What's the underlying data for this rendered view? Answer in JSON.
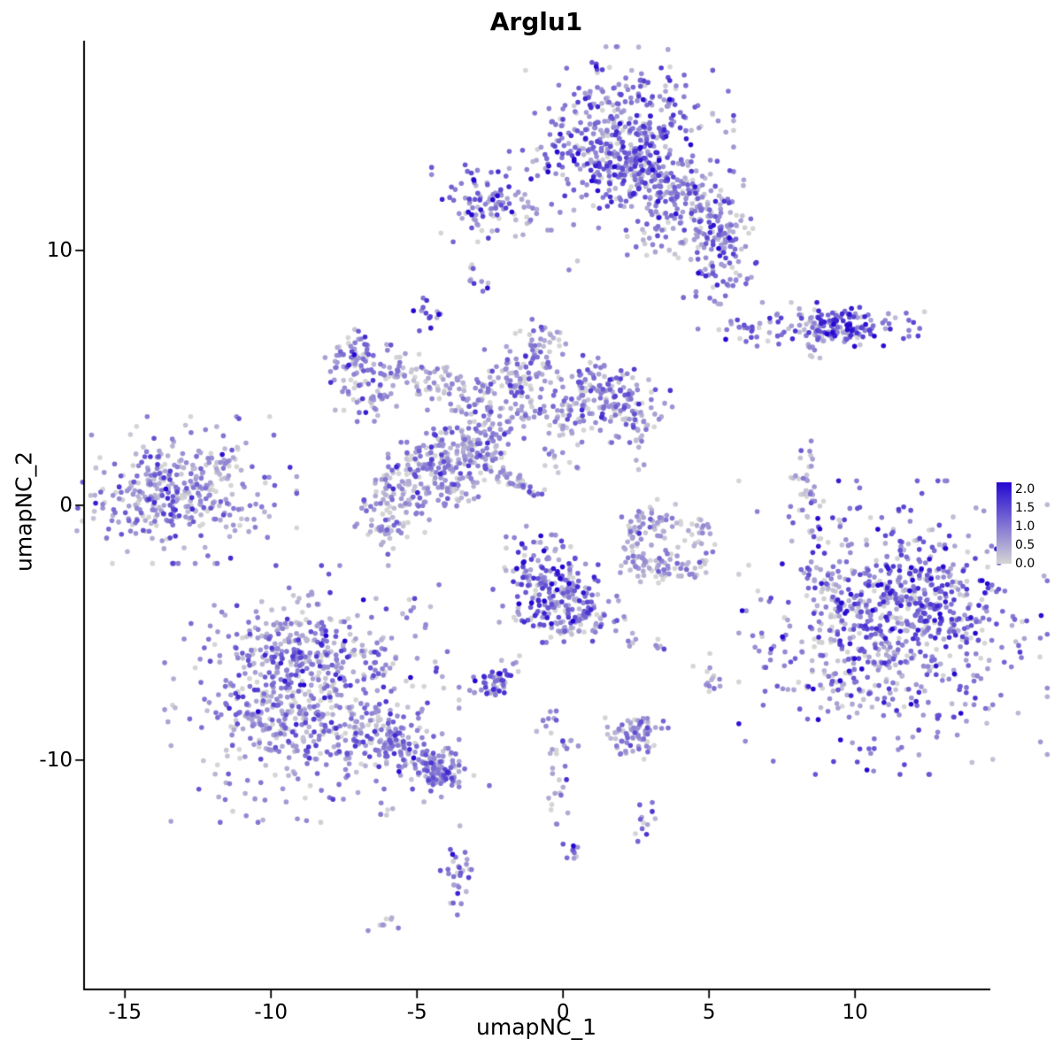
{
  "chart_data": {
    "type": "scatter",
    "title": "Arglu1",
    "xlabel": "umapNC_1",
    "ylabel": "umapNC_2",
    "xlim": [
      -16.4,
      14.6
    ],
    "ylim": [
      -19.0,
      18.2
    ],
    "xticks": [
      -15,
      -10,
      -5,
      0,
      5,
      10
    ],
    "yticks": [
      -10,
      0,
      10
    ],
    "grid": false,
    "point_radius": 2.8,
    "color_low": "#d5d5d5",
    "color_high": "#2408d1",
    "scale_max": 2.0,
    "legend": {
      "labels": [
        "2.0",
        "1.5",
        "1.0",
        "0.5",
        "0.0"
      ],
      "values": [
        2.0,
        1.5,
        1.0,
        0.5,
        0.0
      ],
      "bar_max": 2.2,
      "position": "right"
    },
    "clusters": [
      {
        "x": 2.0,
        "y": 14.4,
        "rx": 1.6,
        "ry": 1.5,
        "n": 420,
        "mean": 0.75,
        "sd": 0.55
      },
      {
        "x": 2.3,
        "y": 13.3,
        "rx": 0.8,
        "ry": 0.7,
        "n": 130,
        "mean": 1.05,
        "sd": 0.6
      },
      {
        "x": 4.4,
        "y": 12.0,
        "rx": 0.9,
        "ry": 0.7,
        "n": 100,
        "mean": 0.7,
        "sd": 0.5
      },
      {
        "x": 5.5,
        "y": 10.9,
        "rx": 0.55,
        "ry": 0.6,
        "n": 60,
        "mean": 0.75,
        "sd": 0.5
      },
      {
        "x": 5.3,
        "y": 9.7,
        "rx": 0.55,
        "ry": 0.75,
        "n": 75,
        "mean": 0.85,
        "sd": 0.55
      },
      {
        "x": 3.4,
        "y": 10.4,
        "rx": 0.5,
        "ry": 0.4,
        "n": 25,
        "mean": 0.5,
        "sd": 0.4
      },
      {
        "x": 3.1,
        "y": 12.6,
        "rx": 0.5,
        "ry": 0.5,
        "n": 40,
        "mean": 0.6,
        "sd": 0.5
      },
      {
        "x": -2.7,
        "y": 11.9,
        "rx": 0.75,
        "ry": 0.65,
        "n": 95,
        "mean": 0.9,
        "sd": 0.6
      },
      {
        "x": -1.2,
        "y": 11.3,
        "rx": 0.3,
        "ry": 0.2,
        "n": 8,
        "mean": 0.4,
        "sd": 0.3
      },
      {
        "x": -2.9,
        "y": 8.8,
        "rx": 0.2,
        "ry": 0.3,
        "n": 10,
        "mean": 0.9,
        "sd": 0.5
      },
      {
        "x": -4.6,
        "y": 7.5,
        "rx": 0.25,
        "ry": 0.3,
        "n": 14,
        "mean": 1.2,
        "sd": 0.5
      },
      {
        "x": 8.7,
        "y": 7.0,
        "rx": 1.7,
        "ry": 0.4,
        "n": 130,
        "mean": 0.95,
        "sd": 0.6
      },
      {
        "x": 9.6,
        "y": 7.1,
        "rx": 0.6,
        "ry": 0.45,
        "n": 60,
        "mean": 1.1,
        "sd": 0.6
      },
      {
        "x": 8.5,
        "y": 6.0,
        "rx": 0.15,
        "ry": 0.3,
        "n": 8,
        "mean": 0.6,
        "sd": 0.4
      },
      {
        "x": -7.1,
        "y": 5.7,
        "rx": 0.55,
        "ry": 0.6,
        "n": 65,
        "mean": 0.6,
        "sd": 0.5
      },
      {
        "x": -6.6,
        "y": 4.6,
        "rx": 0.5,
        "ry": 0.55,
        "n": 55,
        "mean": 0.6,
        "sd": 0.5
      },
      {
        "x": -5.4,
        "y": 5.3,
        "rx": 0.45,
        "ry": 0.4,
        "n": 28,
        "mean": 0.5,
        "sd": 0.45
      },
      {
        "x": -4.2,
        "y": 4.8,
        "rx": 0.5,
        "ry": 0.45,
        "n": 40,
        "mean": 0.5,
        "sd": 0.45
      },
      {
        "x": -2.9,
        "y": 4.2,
        "rx": 0.6,
        "ry": 0.5,
        "n": 50,
        "mean": 0.5,
        "sd": 0.45
      },
      {
        "x": -1.5,
        "y": 5.2,
        "rx": 0.6,
        "ry": 0.5,
        "n": 70,
        "mean": 0.6,
        "sd": 0.5
      },
      {
        "x": -0.6,
        "y": 6.1,
        "rx": 0.45,
        "ry": 0.5,
        "n": 40,
        "mean": 0.55,
        "sd": 0.45
      },
      {
        "x": 0.9,
        "y": 4.6,
        "rx": 0.7,
        "ry": 0.55,
        "n": 85,
        "mean": 0.65,
        "sd": 0.5
      },
      {
        "x": 2.1,
        "y": 3.9,
        "rx": 0.7,
        "ry": 0.65,
        "n": 95,
        "mean": 0.7,
        "sd": 0.5
      },
      {
        "x": 2.5,
        "y": 3.0,
        "rx": 0.3,
        "ry": 0.3,
        "n": 15,
        "mean": 0.5,
        "sd": 0.4
      },
      {
        "x": 0.1,
        "y": 3.2,
        "rx": 0.4,
        "ry": 0.4,
        "n": 30,
        "mean": 0.45,
        "sd": 0.4
      },
      {
        "x": -1.2,
        "y": 3.6,
        "rx": 0.5,
        "ry": 0.4,
        "n": 25,
        "mean": 0.45,
        "sd": 0.4
      },
      {
        "x": -2.4,
        "y": 2.8,
        "rx": 0.5,
        "ry": 0.45,
        "n": 40,
        "mean": 0.5,
        "sd": 0.45
      },
      {
        "x": -3.6,
        "y": 2.5,
        "rx": 0.5,
        "ry": 0.45,
        "n": 50,
        "mean": 0.55,
        "sd": 0.45
      },
      {
        "x": -4.5,
        "y": 1.8,
        "rx": 0.55,
        "ry": 0.5,
        "n": 60,
        "mean": 0.6,
        "sd": 0.5
      },
      {
        "x": -5.6,
        "y": 0.8,
        "rx": 0.65,
        "ry": 0.75,
        "n": 85,
        "mean": 0.6,
        "sd": 0.5
      },
      {
        "x": -5.9,
        "y": -0.6,
        "rx": 0.55,
        "ry": 0.55,
        "n": 55,
        "mean": 0.5,
        "sd": 0.45
      },
      {
        "x": -4.1,
        "y": 0.8,
        "rx": 0.5,
        "ry": 0.5,
        "n": 50,
        "mean": 0.6,
        "sd": 0.5
      },
      {
        "x": -3.1,
        "y": 1.5,
        "rx": 0.45,
        "ry": 0.4,
        "n": 35,
        "mean": 0.5,
        "sd": 0.45
      },
      {
        "x": -1.9,
        "y": 1.1,
        "rx": 0.75,
        "ry": 0.16,
        "angle": -35,
        "n": 48,
        "mean": 0.5,
        "sd": 0.45
      },
      {
        "x": -0.1,
        "y": 1.9,
        "rx": 0.4,
        "ry": 0.3,
        "n": 12,
        "mean": 0.35,
        "sd": 0.35
      },
      {
        "x": -13.2,
        "y": 0.6,
        "rx": 1.7,
        "ry": 1.2,
        "n": 260,
        "mean": 0.6,
        "sd": 0.5
      },
      {
        "x": -13.6,
        "y": 0.4,
        "rx": 0.9,
        "ry": 0.7,
        "n": 110,
        "mean": 0.7,
        "sd": 0.5
      },
      {
        "x": -11.6,
        "y": 1.6,
        "rx": 0.3,
        "ry": 0.25,
        "n": 10,
        "mean": 0.5,
        "sd": 0.4
      },
      {
        "x": 3.0,
        "y": -0.6,
        "rx": 0.5,
        "ry": 0.35,
        "n": 40,
        "mean": 0.45,
        "sd": 0.45
      },
      {
        "x": 2.5,
        "y": -1.5,
        "rx": 0.3,
        "ry": 0.5,
        "n": 30,
        "mean": 0.4,
        "sd": 0.4
      },
      {
        "x": 3.1,
        "y": -2.4,
        "rx": 0.55,
        "ry": 0.35,
        "n": 45,
        "mean": 0.4,
        "sd": 0.4
      },
      {
        "x": 4.3,
        "y": -2.3,
        "rx": 0.5,
        "ry": 0.3,
        "n": 30,
        "mean": 0.4,
        "sd": 0.4
      },
      {
        "x": 4.6,
        "y": -1.2,
        "rx": 0.3,
        "ry": 0.4,
        "n": 20,
        "mean": 0.4,
        "sd": 0.4
      },
      {
        "x": 8.4,
        "y": 0.4,
        "rx": 0.25,
        "ry": 0.9,
        "n": 40,
        "mean": 0.55,
        "sd": 0.5
      },
      {
        "x": 11.3,
        "y": -4.8,
        "rx": 2.2,
        "ry": 2.4,
        "n": 620,
        "mean": 0.8,
        "sd": 0.6
      },
      {
        "x": 12.2,
        "y": -3.6,
        "rx": 1.1,
        "ry": 1.0,
        "n": 160,
        "mean": 1.0,
        "sd": 0.6
      },
      {
        "x": 9.5,
        "y": -5.6,
        "rx": 0.8,
        "ry": 1.0,
        "n": 70,
        "mean": 0.55,
        "sd": 0.5
      },
      {
        "x": 9.2,
        "y": -3.2,
        "rx": 0.4,
        "ry": 0.5,
        "n": 25,
        "mean": 0.5,
        "sd": 0.45
      },
      {
        "x": -0.6,
        "y": -3.1,
        "rx": 0.75,
        "ry": 0.95,
        "n": 170,
        "mean": 1.0,
        "sd": 0.65
      },
      {
        "x": 0.6,
        "y": -4.4,
        "rx": 0.65,
        "ry": 0.5,
        "n": 85,
        "mean": 0.8,
        "sd": 0.55
      },
      {
        "x": 0.1,
        "y": -3.8,
        "rx": 0.4,
        "ry": 0.4,
        "n": 30,
        "mean": 0.8,
        "sd": 0.55
      },
      {
        "x": 2.4,
        "y": -5.2,
        "rx": 0.2,
        "ry": 0.2,
        "n": 6,
        "mean": 0.6,
        "sd": 0.4
      },
      {
        "x": 3.1,
        "y": -5.7,
        "rx": 0.2,
        "ry": 0.2,
        "n": 5,
        "mean": 0.5,
        "sd": 0.4
      },
      {
        "x": -2.4,
        "y": -7.0,
        "rx": 0.35,
        "ry": 0.3,
        "n": 45,
        "mean": 1.1,
        "sd": 0.6
      },
      {
        "x": -1.7,
        "y": -6.3,
        "rx": 0.2,
        "ry": 0.2,
        "n": 6,
        "mean": 0.5,
        "sd": 0.4
      },
      {
        "x": -8.6,
        "y": -7.4,
        "rx": 2.1,
        "ry": 2.1,
        "n": 500,
        "mean": 0.55,
        "sd": 0.5
      },
      {
        "x": -9.2,
        "y": -5.6,
        "rx": 1.2,
        "ry": 0.8,
        "n": 140,
        "mean": 0.75,
        "sd": 0.5
      },
      {
        "x": -9.8,
        "y": -8.2,
        "rx": 0.9,
        "ry": 1.0,
        "n": 130,
        "mean": 0.6,
        "sd": 0.5
      },
      {
        "x": -6.3,
        "y": -9.0,
        "rx": 0.9,
        "ry": 0.6,
        "n": 80,
        "mean": 0.6,
        "sd": 0.5
      },
      {
        "x": -5.2,
        "y": -9.9,
        "rx": 1.2,
        "ry": 0.35,
        "angle": -28,
        "n": 100,
        "mean": 0.6,
        "sd": 0.5
      },
      {
        "x": -4.1,
        "y": -10.5,
        "rx": 0.45,
        "ry": 0.4,
        "n": 50,
        "mean": 0.7,
        "sd": 0.5
      },
      {
        "x": -0.5,
        "y": -8.5,
        "rx": 0.3,
        "ry": 0.3,
        "n": 10,
        "mean": 0.5,
        "sd": 0.4
      },
      {
        "x": 0.1,
        "y": -9.4,
        "rx": 0.25,
        "ry": 0.25,
        "n": 8,
        "mean": 0.5,
        "sd": 0.4
      },
      {
        "x": -0.2,
        "y": -11.2,
        "rx": 0.18,
        "ry": 0.95,
        "n": 20,
        "mean": 0.55,
        "sd": 0.45
      },
      {
        "x": 2.4,
        "y": -9.0,
        "rx": 0.5,
        "ry": 0.4,
        "n": 70,
        "mean": 0.65,
        "sd": 0.5
      },
      {
        "x": 2.8,
        "y": -12.5,
        "rx": 0.3,
        "ry": 0.35,
        "n": 12,
        "mean": 0.7,
        "sd": 0.5
      },
      {
        "x": 0.4,
        "y": -13.7,
        "rx": 0.18,
        "ry": 0.22,
        "n": 8,
        "mean": 1.1,
        "sd": 0.5
      },
      {
        "x": -3.6,
        "y": -14.5,
        "rx": 0.25,
        "ry": 0.8,
        "n": 30,
        "mean": 0.7,
        "sd": 0.5
      },
      {
        "x": -6.1,
        "y": -16.4,
        "rx": 0.25,
        "ry": 0.18,
        "n": 8,
        "mean": 0.5,
        "sd": 0.4
      },
      {
        "x": 5.0,
        "y": -6.9,
        "rx": 0.25,
        "ry": 0.45,
        "n": 14,
        "mean": 0.6,
        "sd": 0.45
      },
      {
        "x": 0.4,
        "y": 9.6,
        "rx": 0.15,
        "ry": 0.15,
        "n": 2,
        "mean": 0.4,
        "sd": 0.3
      },
      {
        "x": 2.5,
        "y": 1.4,
        "rx": 0.2,
        "ry": 0.2,
        "n": 3,
        "mean": 0.4,
        "sd": 0.3
      }
    ]
  }
}
